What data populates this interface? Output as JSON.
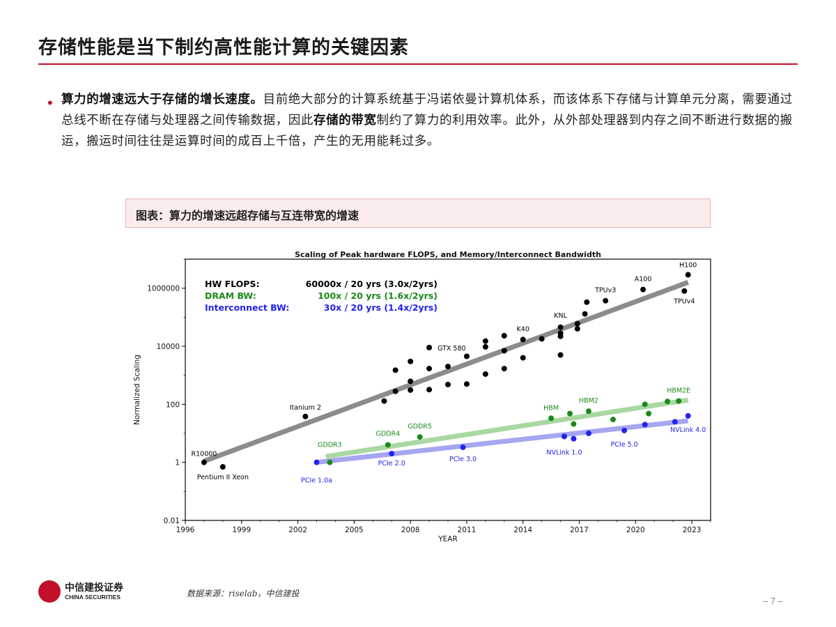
{
  "page": {
    "title": "存储性能是当下制约高性能计算的关键因素",
    "bullet": {
      "lead": "算力的增速远大于存储的增长速度。",
      "text1": "目前绝大部分的计算系统基于冯诺依曼计算机体系，而该体系下存储与计算单元分离，需要通过总线不断在存储与处理器之间传输数据，因此",
      "emph": "存储的带宽",
      "text2": "制约了算力的利用效率。此外，从外部处理器到内存之间不断进行数据的搬运，搬运时间往往是运算时间的成百上千倍，产生的无用能耗过多。"
    },
    "caption": "图表：算力的增速远超存储与互连带宽的增速",
    "source": "数据来源：riselab，中信建投",
    "logo": {
      "cn": "中信建投证券",
      "en": "CHINA SECURITIES"
    },
    "page_number": "– 7 –"
  },
  "chart_data": {
    "type": "scatter",
    "title": "Scaling of Peak hardware FLOPS, and Memory/Interconnect Bandwidth",
    "xlabel": "YEAR",
    "ylabel": "Normalized Scaling",
    "y_scale": "log",
    "xlim": [
      1996,
      2024
    ],
    "ylim": [
      0.01,
      10000000
    ],
    "xticks": [
      1996,
      1999,
      2002,
      2005,
      2008,
      2011,
      2014,
      2017,
      2020,
      2023
    ],
    "yticks": [
      {
        "v": 0.01,
        "label": "0.01"
      },
      {
        "v": 1,
        "label": "1"
      },
      {
        "v": 100,
        "label": "100"
      },
      {
        "v": 10000,
        "label": "10000"
      },
      {
        "v": 1000000,
        "label": "1000000"
      }
    ],
    "grid": false,
    "legend": [
      {
        "name": "HW FLOPS:",
        "text": "60000x / 20 yrs (3.0x/2yrs)",
        "color": "#000000"
      },
      {
        "name": "DRAM BW:",
        "text": "100x / 20 yrs (1.6x/2yrs)",
        "color": "#1a8a1a"
      },
      {
        "name": "Interconnect BW:",
        "text": "30x / 20 yrs (1.4x/2yrs)",
        "color": "#2222ee"
      }
    ],
    "trends": [
      {
        "series": "HW FLOPS",
        "color": "#8c8c8c",
        "from": [
          1997,
          1.1
        ],
        "to": [
          2022.8,
          1600000
        ]
      },
      {
        "series": "DRAM BW",
        "color": "#a9d8a2",
        "from": [
          2003.5,
          1.6
        ],
        "to": [
          2022.8,
          140
        ]
      },
      {
        "series": "Interconnect BW",
        "color": "#a6a6f0",
        "from": [
          2003,
          1
        ],
        "to": [
          2022.8,
          27
        ]
      }
    ],
    "series": [
      {
        "name": "HW FLOPS",
        "color": "#000000",
        "points": [
          [
            1997,
            1
          ],
          [
            1998,
            0.7
          ],
          [
            2002.4,
            38
          ],
          [
            2006.6,
            130
          ],
          [
            2007.2,
            280
          ],
          [
            2007.2,
            1500
          ],
          [
            2008,
            310
          ],
          [
            2008,
            620
          ],
          [
            2008,
            3000
          ],
          [
            2009,
            320
          ],
          [
            2009,
            1700
          ],
          [
            2009,
            9000
          ],
          [
            2010,
            480
          ],
          [
            2010,
            2000
          ],
          [
            2011,
            500
          ],
          [
            2011,
            4500
          ],
          [
            2012,
            1100
          ],
          [
            2012,
            9500
          ],
          [
            2012,
            15000
          ],
          [
            2013,
            1700
          ],
          [
            2013,
            7000
          ],
          [
            2013,
            23000
          ],
          [
            2014,
            4000
          ],
          [
            2014,
            17000
          ],
          [
            2015,
            18000
          ],
          [
            2016,
            5000
          ],
          [
            2016,
            22000
          ],
          [
            2016,
            28000
          ],
          [
            2016,
            45000
          ],
          [
            2016.9,
            40000
          ],
          [
            2016.9,
            60000
          ],
          [
            2017.3,
            130000
          ],
          [
            2017.4,
            330000
          ],
          [
            2018.4,
            370000
          ],
          [
            2020.4,
            900000
          ],
          [
            2022.6,
            800000
          ],
          [
            2022.8,
            2900000
          ]
        ]
      },
      {
        "name": "DRAM BW",
        "color": "#1a8a1a",
        "points": [
          [
            2003.7,
            1
          ],
          [
            2006.8,
            4
          ],
          [
            2008.5,
            7.5
          ],
          [
            2015.5,
            33
          ],
          [
            2016.5,
            48
          ],
          [
            2016.7,
            21
          ],
          [
            2017.5,
            58
          ],
          [
            2018.8,
            30
          ],
          [
            2020.5,
            100
          ],
          [
            2020.7,
            48
          ],
          [
            2021.7,
            125
          ],
          [
            2022.3,
            130
          ]
        ]
      },
      {
        "name": "Interconnect BW",
        "color": "#2222ee",
        "points": [
          [
            2003,
            1
          ],
          [
            2007,
            2
          ],
          [
            2010.8,
            3.3
          ],
          [
            2016.2,
            7.8
          ],
          [
            2016.7,
            6.5
          ],
          [
            2017.5,
            10
          ],
          [
            2019.4,
            12.5
          ],
          [
            2020.5,
            20
          ],
          [
            2022.1,
            25
          ],
          [
            2022.8,
            40
          ]
        ]
      }
    ],
    "annotations": [
      {
        "text": "R10000",
        "x": 1997,
        "y": 1,
        "dx": 0,
        "dy": -9,
        "anchor": "middle",
        "color": "#000000"
      },
      {
        "text": "Pentium II Xeon",
        "x": 1998,
        "y": 0.7,
        "dx": 0,
        "dy": 18,
        "anchor": "middle",
        "color": "#000000"
      },
      {
        "text": "Itanium 2",
        "x": 2002.4,
        "y": 38,
        "dx": 0,
        "dy": -10,
        "anchor": "middle",
        "color": "#000000"
      },
      {
        "text": "GTX 580",
        "x": 2009,
        "y": 9000,
        "dx": 12,
        "dy": 4,
        "anchor": "start",
        "color": "#000000"
      },
      {
        "text": "K40",
        "x": 2014,
        "y": 17000,
        "dx": 0,
        "dy": -12,
        "anchor": "middle",
        "color": "#000000"
      },
      {
        "text": "KNL",
        "x": 2016,
        "y": 45000,
        "dx": 0,
        "dy": -14,
        "anchor": "middle",
        "color": "#000000"
      },
      {
        "text": "TPUv3",
        "x": 2018.4,
        "y": 370000,
        "dx": 0,
        "dy": -12,
        "anchor": "middle",
        "color": "#000000"
      },
      {
        "text": "A100",
        "x": 2020.4,
        "y": 900000,
        "dx": 0,
        "dy": -12,
        "anchor": "middle",
        "color": "#000000"
      },
      {
        "text": "H100",
        "x": 2022.8,
        "y": 2900000,
        "dx": 0,
        "dy": -11,
        "anchor": "middle",
        "color": "#000000"
      },
      {
        "text": "TPUv4",
        "x": 2022.6,
        "y": 800000,
        "dx": 0,
        "dy": 18,
        "anchor": "middle",
        "color": "#000000"
      },
      {
        "text": "GDDR3",
        "x": 2003.7,
        "y": 1,
        "dx": 0,
        "dy": -22,
        "anchor": "middle",
        "color": "#1a8a1a"
      },
      {
        "text": "GDDR4",
        "x": 2006.8,
        "y": 4,
        "dx": 0,
        "dy": -13,
        "anchor": "middle",
        "color": "#1a8a1a"
      },
      {
        "text": "GDDR5",
        "x": 2008.5,
        "y": 7.5,
        "dx": 0,
        "dy": -12,
        "anchor": "middle",
        "color": "#1a8a1a"
      },
      {
        "text": "HBM",
        "x": 2015.5,
        "y": 33,
        "dx": 0,
        "dy": -12,
        "anchor": "middle",
        "color": "#1a8a1a"
      },
      {
        "text": "HBM2",
        "x": 2017.5,
        "y": 58,
        "dx": 0,
        "dy": -12,
        "anchor": "middle",
        "color": "#1a8a1a"
      },
      {
        "text": "HBM2E",
        "x": 2022.3,
        "y": 130,
        "dx": 0,
        "dy": -12,
        "anchor": "middle",
        "color": "#1a8a1a"
      },
      {
        "text": "PCIe 1.0a",
        "x": 2003,
        "y": 1,
        "dx": 0,
        "dy": 29,
        "anchor": "middle",
        "color": "#2222ee"
      },
      {
        "text": "PCIe 2.0",
        "x": 2007,
        "y": 2,
        "dx": 0,
        "dy": 17,
        "anchor": "middle",
        "color": "#2222ee"
      },
      {
        "text": "PCIe 3.0",
        "x": 2010.8,
        "y": 3.3,
        "dx": 0,
        "dy": 20,
        "anchor": "middle",
        "color": "#2222ee"
      },
      {
        "text": "NVLink 1.0",
        "x": 2016.2,
        "y": 7.8,
        "dx": 0,
        "dy": 26,
        "anchor": "middle",
        "color": "#2222ee"
      },
      {
        "text": "PCIe 5.0",
        "x": 2019.4,
        "y": 12.5,
        "dx": 0,
        "dy": 23,
        "anchor": "middle",
        "color": "#2222ee"
      },
      {
        "text": "NVLink 4.0",
        "x": 2022.8,
        "y": 40,
        "dx": 0,
        "dy": 23,
        "anchor": "middle",
        "color": "#2222ee"
      }
    ]
  }
}
